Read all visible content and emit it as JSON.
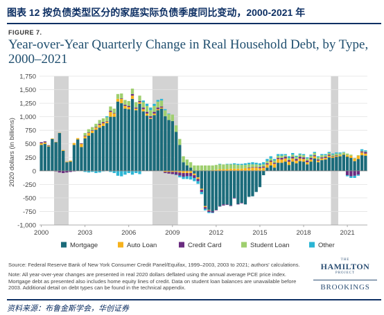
{
  "page_title": "图表 12    按负债类型区分的家庭实际负债季度同比变动，2000-2021 年",
  "figure_label": "FIGURE 7.",
  "source_footer": "资料来源：布鲁金斯学会，华创证券",
  "notes": {
    "source": "Source:  Federal Reserve Bank of New York Consumer Credit Panel/Equifax, 1999–2003, 2003 to 2021; authors' calculations.",
    "note": "Note: All year-over-year changes are presented in real 2020 dollars deflated using the annual average PCE price index. Mortgage debt as presented also includes home equity lines of credit. Data on student loan balances are unavailable before 2003. Additional detail on debt types can be found in the technical appendix."
  },
  "logo": {
    "the": "THE",
    "name": "HAMILTON",
    "project": "PROJECT",
    "brookings": "BROOKINGS"
  },
  "colors": {
    "mortgage": "#1b6b7a",
    "auto_loan": "#f6b21d",
    "credit_card": "#6a2c80",
    "student_loan": "#9fcf6f",
    "other": "#2bb5d4",
    "recession_shade": "#d3d3d3",
    "title_blue": "#1f4e6e"
  },
  "chart_data": {
    "type": "bar",
    "stacked": true,
    "title": "Year-over-Year Quarterly Change in Real Household Debt, by Type, 2000–2021",
    "xlabel": "",
    "ylabel": "2020 dollars (in billions)",
    "ylim": [
      -1000,
      1750
    ],
    "yticks": [
      1750,
      1500,
      1250,
      1000,
      750,
      500,
      250,
      0,
      -250,
      -500,
      -750,
      -1000
    ],
    "ytick_labels": [
      "1,750",
      "1,500",
      "1,250",
      "1,000",
      "750",
      "500",
      "250",
      "0",
      "-250",
      "-500",
      "-750",
      "-1,000"
    ],
    "xticks": [
      "2000",
      "2003",
      "2006",
      "2009",
      "2012",
      "2015",
      "2018",
      "2021"
    ],
    "x_start": "2000Q1",
    "x_end": "2021Q3",
    "grid": "horizontal",
    "legend": "bottom",
    "recessions": [
      [
        "2001Q1",
        "2001Q4"
      ],
      [
        "2007Q4",
        "2009Q2"
      ],
      [
        "2020Q1",
        "2020Q2"
      ]
    ],
    "series": [
      {
        "name": "Mortgage",
        "key": "mortgage",
        "values": [
          480,
          500,
          450,
          590,
          530,
          700,
          370,
          160,
          170,
          480,
          580,
          440,
          600,
          650,
          700,
          760,
          800,
          830,
          880,
          1000,
          1000,
          1280,
          1250,
          1150,
          1140,
          1330,
          1120,
          1240,
          1100,
          1020,
          960,
          1030,
          1120,
          1150,
          1010,
          940,
          920,
          720,
          480,
          160,
          100,
          60,
          -50,
          -120,
          -330,
          -650,
          -720,
          -750,
          -720,
          -650,
          -620,
          -620,
          -640,
          -500,
          -610,
          -590,
          -620,
          -480,
          -470,
          -390,
          -300,
          -80,
          60,
          100,
          60,
          150,
          150,
          170,
          110,
          170,
          140,
          180,
          170,
          120,
          170,
          230,
          160,
          200,
          210,
          250,
          240,
          260,
          270,
          300,
          260,
          240,
          180,
          220,
          290,
          280
        ]
      },
      {
        "name": "Auto Loan",
        "key": "auto_loan",
        "values": [
          30,
          25,
          15,
          10,
          5,
          5,
          15,
          10,
          20,
          35,
          25,
          60,
          40,
          50,
          40,
          40,
          50,
          50,
          30,
          90,
          60,
          50,
          80,
          50,
          40,
          60,
          30,
          30,
          40,
          40,
          20,
          30,
          20,
          20,
          -20,
          -20,
          -20,
          -20,
          -30,
          -40,
          -40,
          -40,
          -30,
          -30,
          -20,
          -20,
          -10,
          10,
          20,
          30,
          30,
          30,
          40,
          40,
          40,
          40,
          50,
          50,
          60,
          60,
          50,
          60,
          60,
          70,
          70,
          70,
          60,
          60,
          60,
          60,
          50,
          50,
          50,
          40,
          40,
          40,
          30,
          30,
          30,
          30,
          20,
          20,
          20,
          10,
          30,
          40,
          50,
          60,
          50,
          40
        ]
      },
      {
        "name": "Credit Card",
        "key": "credit_card",
        "values": [
          20,
          20,
          10,
          0,
          -10,
          -30,
          -40,
          -30,
          -20,
          -10,
          0,
          10,
          10,
          10,
          10,
          10,
          20,
          20,
          10,
          20,
          10,
          0,
          10,
          20,
          20,
          30,
          20,
          20,
          30,
          30,
          30,
          30,
          30,
          20,
          -20,
          -30,
          -40,
          -50,
          -60,
          -70,
          -60,
          -60,
          -50,
          -40,
          -40,
          -30,
          -30,
          -20,
          -10,
          -10,
          -20,
          -10,
          -10,
          -10,
          -10,
          -10,
          0,
          10,
          10,
          10,
          20,
          20,
          20,
          20,
          20,
          20,
          30,
          30,
          30,
          30,
          30,
          30,
          30,
          30,
          30,
          20,
          20,
          20,
          20,
          20,
          10,
          10,
          0,
          0,
          -80,
          -100,
          -90,
          -70,
          20,
          30
        ]
      },
      {
        "name": "Student Loan",
        "key": "student_loan",
        "values": [
          0,
          0,
          0,
          0,
          0,
          0,
          0,
          0,
          0,
          0,
          0,
          0,
          50,
          60,
          60,
          60,
          70,
          70,
          70,
          80,
          80,
          90,
          90,
          90,
          90,
          100,
          100,
          100,
          100,
          110,
          110,
          110,
          110,
          110,
          110,
          110,
          120,
          120,
          110,
          110,
          110,
          100,
          100,
          100,
          100,
          100,
          100,
          90,
          90,
          90,
          90,
          90,
          80,
          80,
          70,
          70,
          60,
          60,
          50,
          50,
          40,
          40,
          40,
          40,
          40,
          40,
          40,
          30,
          40,
          40,
          40,
          40,
          40,
          40,
          40,
          40,
          40,
          40,
          30,
          30,
          30,
          30,
          30,
          30,
          30,
          20,
          10,
          10,
          10,
          10
        ]
      },
      {
        "name": "Other",
        "key": "other",
        "values": [
          0,
          0,
          0,
          0,
          0,
          0,
          0,
          0,
          0,
          0,
          0,
          0,
          -20,
          -30,
          -20,
          -40,
          -30,
          -10,
          20,
          -20,
          -40,
          -90,
          -100,
          -70,
          -40,
          -70,
          -40,
          -60,
          30,
          40,
          50,
          40,
          30,
          30,
          20,
          10,
          0,
          -10,
          -30,
          -40,
          -50,
          -60,
          -60,
          -50,
          -40,
          -30,
          -20,
          -10,
          0,
          10,
          0,
          10,
          10,
          20,
          20,
          20,
          30,
          30,
          40,
          30,
          30,
          40,
          40,
          40,
          30,
          30,
          30,
          20,
          30,
          30,
          20,
          20,
          20,
          20,
          20,
          20,
          20,
          20,
          20,
          20,
          20,
          20,
          20,
          10,
          -20,
          -30,
          -40,
          -20,
          30,
          20
        ]
      }
    ]
  }
}
